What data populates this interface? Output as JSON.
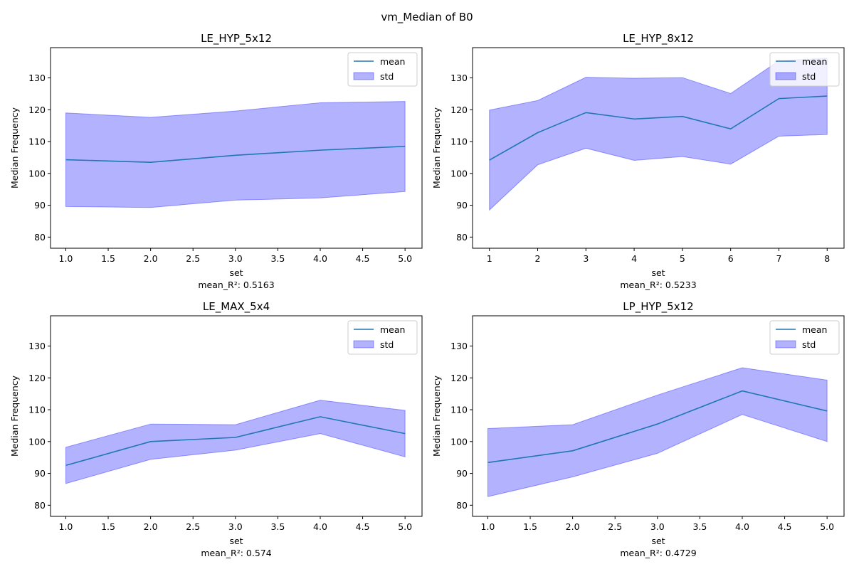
{
  "suptitle": "vm_Median of B0",
  "chart_data": [
    {
      "type": "line",
      "title": "LE_HYP_5x12",
      "xlabel": "set",
      "ylabel": "Median Frequency",
      "caption": "mean_R²: 0.5163",
      "xlim": [
        0.82,
        5.2
      ],
      "ylim": [
        76.5,
        139.5
      ],
      "x_ticks": [
        1.0,
        1.5,
        2.0,
        2.5,
        3.0,
        3.5,
        4.0,
        4.5,
        5.0
      ],
      "x_tick_labels": [
        "1.0",
        "1.5",
        "2.0",
        "2.5",
        "3.0",
        "3.5",
        "4.0",
        "4.5",
        "5.0"
      ],
      "y_ticks": [
        80,
        90,
        100,
        110,
        120,
        130
      ],
      "y_tick_labels": [
        "80",
        "90",
        "100",
        "110",
        "120",
        "130"
      ],
      "legend": {
        "position": "upper right",
        "items": [
          "mean",
          "std"
        ]
      },
      "series": [
        {
          "name": "mean",
          "x": [
            1,
            2,
            3,
            4,
            5
          ],
          "values": [
            104.3,
            103.5,
            105.7,
            107.3,
            108.5
          ]
        },
        {
          "name": "std",
          "x": [
            1,
            2,
            3,
            4,
            5
          ],
          "lower": [
            89.6,
            89.3,
            91.6,
            92.3,
            94.3
          ],
          "upper": [
            119.0,
            117.6,
            119.6,
            122.2,
            122.6
          ]
        }
      ]
    },
    {
      "type": "line",
      "title": "LE_HYP_8x12",
      "xlabel": "set",
      "ylabel": "Median Frequency",
      "caption": "mean_R²: 0.5233",
      "xlim": [
        0.65,
        8.35
      ],
      "ylim": [
        76.5,
        139.5
      ],
      "x_ticks": [
        1,
        2,
        3,
        4,
        5,
        6,
        7,
        8
      ],
      "x_tick_labels": [
        "1",
        "2",
        "3",
        "4",
        "5",
        "6",
        "7",
        "8"
      ],
      "y_ticks": [
        80,
        90,
        100,
        110,
        120,
        130
      ],
      "y_tick_labels": [
        "80",
        "90",
        "100",
        "110",
        "120",
        "130"
      ],
      "legend": {
        "position": "upper right",
        "items": [
          "mean",
          "std"
        ]
      },
      "series": [
        {
          "name": "mean",
          "x": [
            1,
            2,
            3,
            4,
            5,
            6,
            7,
            8
          ],
          "values": [
            104.2,
            112.8,
            119.1,
            117.1,
            117.9,
            114.0,
            123.5,
            124.3
          ]
        },
        {
          "name": "std",
          "x": [
            1,
            2,
            3,
            4,
            5,
            6,
            7,
            8
          ],
          "lower": [
            88.5,
            102.7,
            107.9,
            104.1,
            105.3,
            102.9,
            111.7,
            112.2
          ],
          "upper": [
            119.9,
            122.9,
            130.2,
            129.9,
            130.1,
            125.1,
            135.4,
            136.2
          ]
        }
      ]
    },
    {
      "type": "line",
      "title": "LE_MAX_5x4",
      "xlabel": "set",
      "ylabel": "Median Frequency",
      "caption": "mean_R²: 0.574",
      "xlim": [
        0.82,
        5.2
      ],
      "ylim": [
        76.5,
        139.5
      ],
      "x_ticks": [
        1.0,
        1.5,
        2.0,
        2.5,
        3.0,
        3.5,
        4.0,
        4.5,
        5.0
      ],
      "x_tick_labels": [
        "1.0",
        "1.5",
        "2.0",
        "2.5",
        "3.0",
        "3.5",
        "4.0",
        "4.5",
        "5.0"
      ],
      "y_ticks": [
        80,
        90,
        100,
        110,
        120,
        130
      ],
      "y_tick_labels": [
        "80",
        "90",
        "100",
        "110",
        "120",
        "130"
      ],
      "legend": {
        "position": "upper right",
        "items": [
          "mean",
          "std"
        ]
      },
      "series": [
        {
          "name": "mean",
          "x": [
            1,
            2,
            3,
            4,
            5
          ],
          "values": [
            92.5,
            100.0,
            101.3,
            107.8,
            102.5
          ]
        },
        {
          "name": "std",
          "x": [
            1,
            2,
            3,
            4,
            5
          ],
          "lower": [
            86.8,
            94.4,
            97.3,
            102.5,
            95.2
          ],
          "upper": [
            98.2,
            105.5,
            105.3,
            113.0,
            109.8
          ]
        }
      ]
    },
    {
      "type": "line",
      "title": "LP_HYP_5x12",
      "xlabel": "set",
      "ylabel": "Median Frequency",
      "caption": "mean_R²: 0.4729",
      "xlim": [
        0.82,
        5.2
      ],
      "ylim": [
        76.5,
        139.5
      ],
      "x_ticks": [
        1.0,
        1.5,
        2.0,
        2.5,
        3.0,
        3.5,
        4.0,
        4.5,
        5.0
      ],
      "x_tick_labels": [
        "1.0",
        "1.5",
        "2.0",
        "2.5",
        "3.0",
        "3.5",
        "4.0",
        "4.5",
        "5.0"
      ],
      "y_ticks": [
        80,
        90,
        100,
        110,
        120,
        130
      ],
      "y_tick_labels": [
        "80",
        "90",
        "100",
        "110",
        "120",
        "130"
      ],
      "legend": {
        "position": "upper right",
        "items": [
          "mean",
          "std"
        ]
      },
      "series": [
        {
          "name": "mean",
          "x": [
            1,
            2,
            3,
            4,
            5
          ],
          "values": [
            93.4,
            97.1,
            105.5,
            115.9,
            109.6
          ]
        },
        {
          "name": "std",
          "x": [
            1,
            2,
            3,
            4,
            5
          ],
          "lower": [
            82.7,
            88.9,
            96.3,
            108.5,
            100.0
          ],
          "upper": [
            104.1,
            105.3,
            114.6,
            123.2,
            119.3
          ]
        }
      ]
    }
  ],
  "colors": {
    "mean_line": "#1f77b4",
    "std_fill": "#0000ff",
    "std_fill_opacity": 0.3
  }
}
